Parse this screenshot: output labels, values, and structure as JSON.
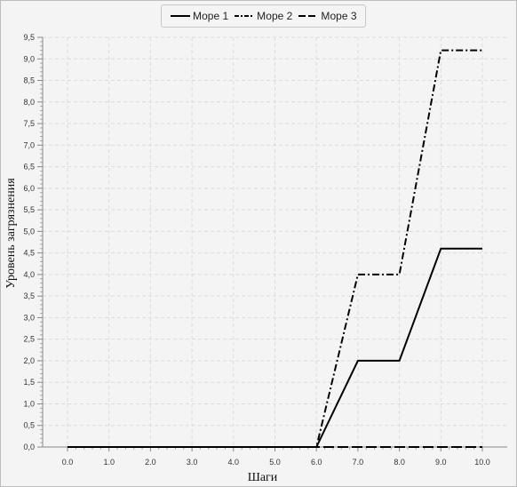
{
  "chart_data": {
    "type": "line",
    "xlabel": "Шаги",
    "ylabel": "Уровень загрязнения",
    "x": [
      0,
      1,
      2,
      3,
      4,
      5,
      6,
      7,
      8,
      9,
      10
    ],
    "xticks": [
      "0.0",
      "1.0",
      "2.0",
      "3.0",
      "4.0",
      "5.0",
      "6.0",
      "7.0",
      "8.0",
      "9.0",
      "10.0"
    ],
    "yticks": [
      "0,0",
      "0,5",
      "1,0",
      "1,5",
      "2,0",
      "2,5",
      "3,0",
      "3,5",
      "4,0",
      "4,5",
      "5,0",
      "5,5",
      "6,0",
      "6,5",
      "7,0",
      "7,5",
      "8,0",
      "8,5",
      "9,0",
      "9,5"
    ],
    "xlim": [
      -0.6,
      10.6
    ],
    "ylim": [
      0,
      9.5
    ],
    "grid": true,
    "legend_position": "top-center",
    "series": [
      {
        "name": "Море 1",
        "style": "solid",
        "color": "#000000",
        "values": [
          0,
          0,
          0,
          0,
          0,
          0,
          0,
          2,
          2,
          4.6,
          4.6
        ]
      },
      {
        "name": "Море 2",
        "style": "dash-dot",
        "color": "#000000",
        "values": [
          0,
          0,
          0,
          0,
          0,
          0,
          0,
          4,
          4,
          9.2,
          9.2
        ]
      },
      {
        "name": "Море 3",
        "style": "long-dash",
        "color": "#000000",
        "values": [
          0,
          0,
          0,
          0,
          0,
          0,
          0,
          0,
          0,
          0,
          0
        ]
      }
    ]
  }
}
